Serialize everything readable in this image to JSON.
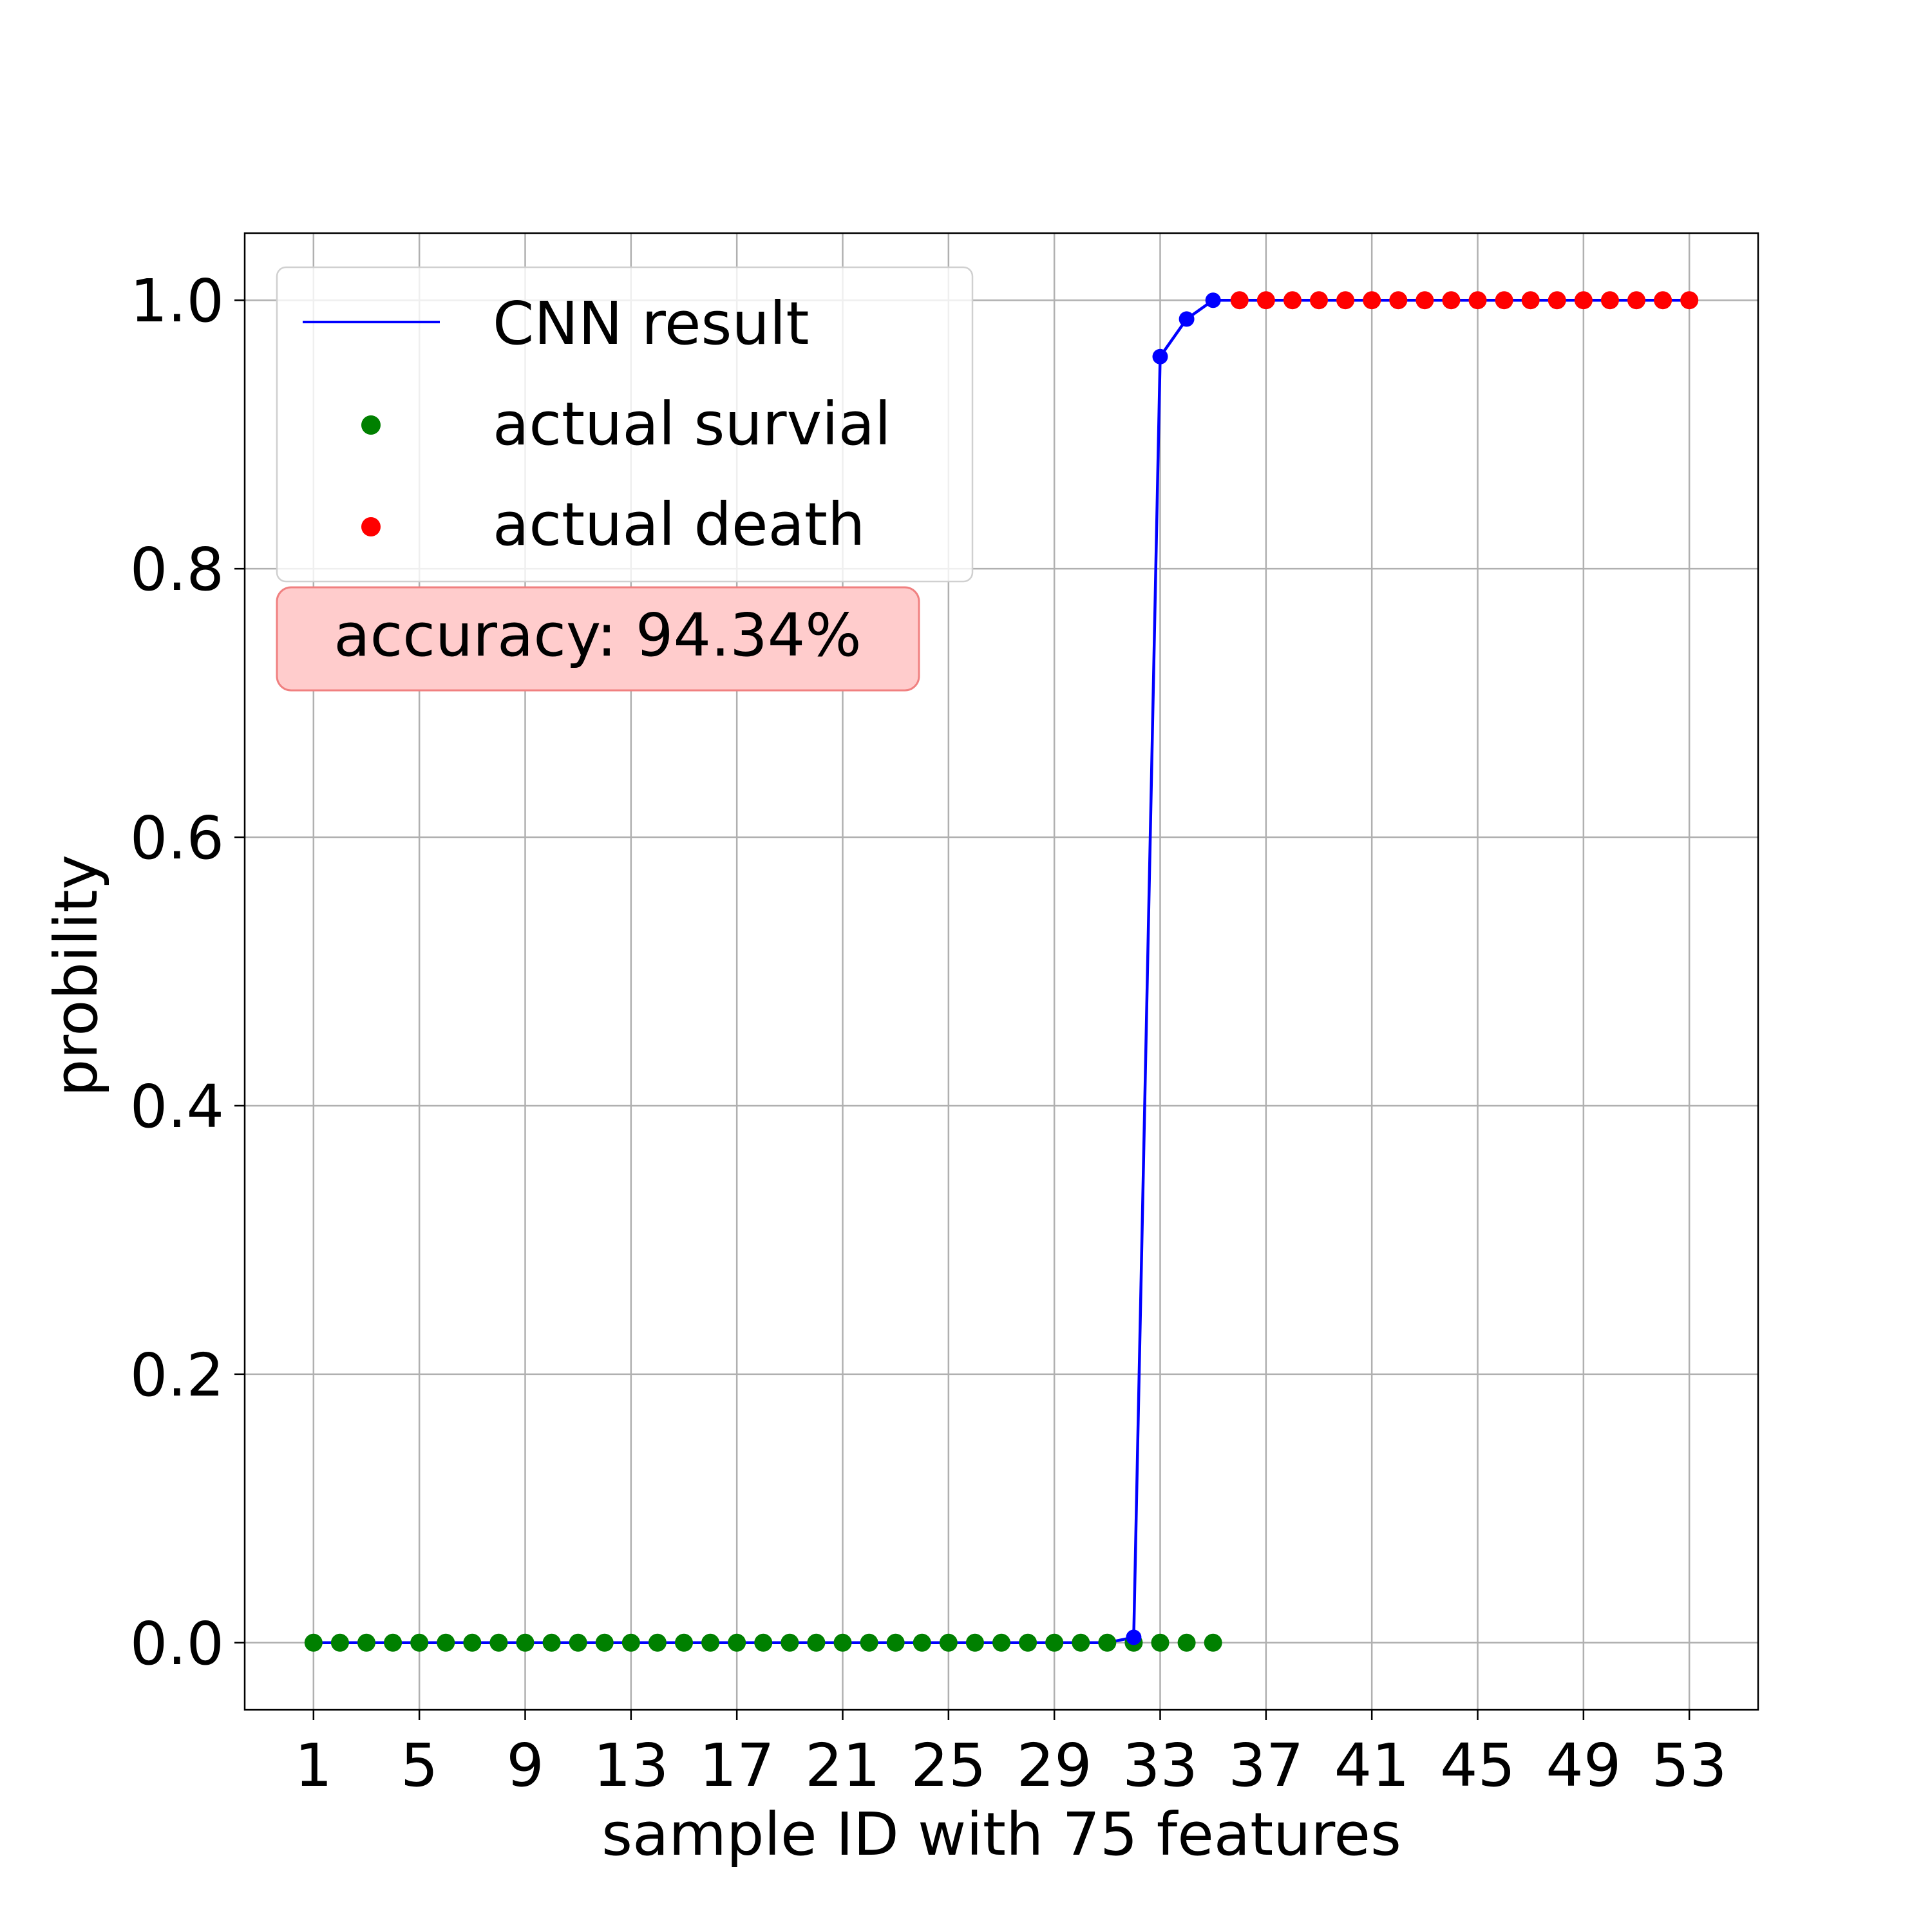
{
  "chart_data": {
    "type": "line",
    "xlabel": "sample ID with 75 features",
    "ylabel": "probility",
    "xlim": [
      -1.6,
      55.6
    ],
    "ylim": [
      -0.05,
      1.05
    ],
    "xticks": [
      1,
      5,
      9,
      13,
      17,
      21,
      25,
      29,
      33,
      37,
      41,
      45,
      49,
      53
    ],
    "yticks": [
      0.0,
      0.2,
      0.4,
      0.6,
      0.8,
      1.0
    ],
    "ytick_labels": [
      "0.0",
      "0.2",
      "0.4",
      "0.6",
      "0.8",
      "1.0"
    ],
    "grid": true,
    "legend_position": "top-left",
    "series": [
      {
        "name": "CNN result",
        "kind": "line",
        "color": "#0000ff",
        "x": [
          1,
          2,
          3,
          4,
          5,
          6,
          7,
          8,
          9,
          10,
          11,
          12,
          13,
          14,
          15,
          16,
          17,
          18,
          19,
          20,
          21,
          22,
          23,
          24,
          25,
          26,
          27,
          28,
          29,
          30,
          31,
          32,
          33,
          34,
          35,
          36,
          37,
          38,
          39,
          40,
          41,
          42,
          43,
          44,
          45,
          46,
          47,
          48,
          49,
          50,
          51,
          52,
          53
        ],
        "y": [
          0,
          0,
          0,
          0,
          0,
          0,
          0,
          0,
          0,
          0,
          0,
          0,
          0,
          0,
          0,
          0,
          0,
          0,
          0,
          0,
          0,
          0,
          0,
          0,
          0,
          0,
          0,
          0,
          0,
          0,
          0,
          0.004,
          0.958,
          0.986,
          1.0,
          1.0,
          1.0,
          1.0,
          1.0,
          1.0,
          1.0,
          1.0,
          1.0,
          1.0,
          1.0,
          1.0,
          1.0,
          1.0,
          1.0,
          1.0,
          1.0,
          1.0,
          1.0
        ]
      },
      {
        "name": "actual survial",
        "kind": "scatter",
        "color": "#008000",
        "x": [
          1,
          2,
          3,
          4,
          5,
          6,
          7,
          8,
          9,
          10,
          11,
          12,
          13,
          14,
          15,
          16,
          17,
          18,
          19,
          20,
          21,
          22,
          23,
          24,
          25,
          26,
          27,
          28,
          29,
          30,
          31,
          32,
          33,
          34,
          35
        ],
        "y": [
          0,
          0,
          0,
          0,
          0,
          0,
          0,
          0,
          0,
          0,
          0,
          0,
          0,
          0,
          0,
          0,
          0,
          0,
          0,
          0,
          0,
          0,
          0,
          0,
          0,
          0,
          0,
          0,
          0,
          0,
          0,
          0,
          0,
          0,
          0
        ]
      },
      {
        "name": "actual death",
        "kind": "scatter",
        "color": "#ff0000",
        "x": [
          36,
          37,
          38,
          39,
          40,
          41,
          42,
          43,
          44,
          45,
          46,
          47,
          48,
          49,
          50,
          51,
          52,
          53
        ],
        "y": [
          1,
          1,
          1,
          1,
          1,
          1,
          1,
          1,
          1,
          1,
          1,
          1,
          1,
          1,
          1,
          1,
          1,
          1
        ]
      }
    ],
    "annotation": {
      "text": "accuracy: 94.34%",
      "box_fill": "#ffcccc",
      "box_edge": "#f08080"
    }
  }
}
